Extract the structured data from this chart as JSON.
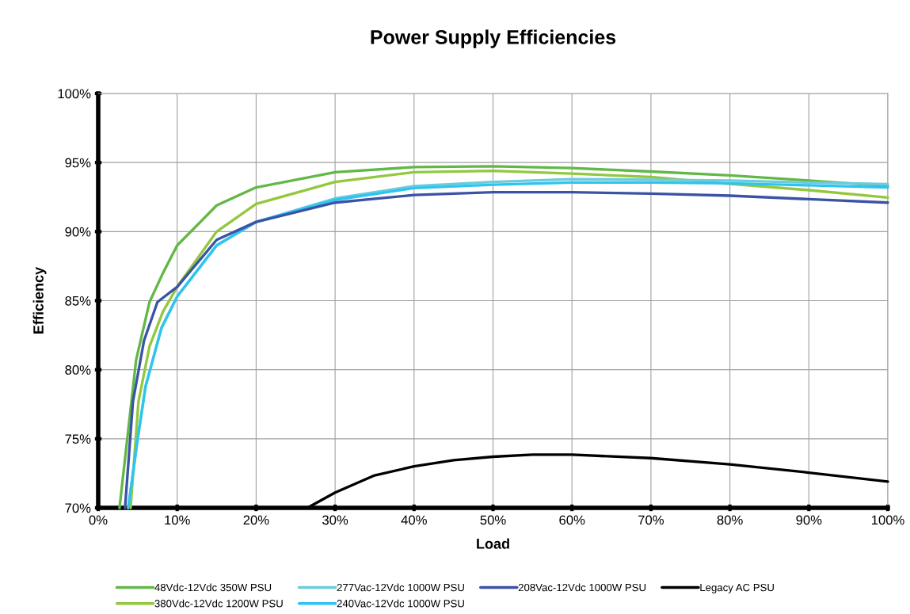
{
  "chart_data": {
    "type": "line",
    "title": "Power Supply Efficiencies",
    "xlabel": "Load",
    "ylabel": "Efficiency",
    "xlim": [
      0,
      100
    ],
    "ylim": [
      70,
      100
    ],
    "xticks": [
      {
        "value": 0,
        "label": "0%"
      },
      {
        "value": 10,
        "label": "10%"
      },
      {
        "value": 20,
        "label": "20%"
      },
      {
        "value": 30,
        "label": "30%"
      },
      {
        "value": 40,
        "label": "40%"
      },
      {
        "value": 50,
        "label": "50%"
      },
      {
        "value": 60,
        "label": "60%"
      },
      {
        "value": 70,
        "label": "70%"
      },
      {
        "value": 80,
        "label": "80%"
      },
      {
        "value": 90,
        "label": "90%"
      },
      {
        "value": 100,
        "label": "100%"
      }
    ],
    "yticks": [
      {
        "value": 70,
        "label": "70%"
      },
      {
        "value": 75,
        "label": "75%"
      },
      {
        "value": 80,
        "label": "80%"
      },
      {
        "value": 85,
        "label": "85%"
      },
      {
        "value": 90,
        "label": "90%"
      },
      {
        "value": 95,
        "label": "95%"
      },
      {
        "value": 100,
        "label": "100%"
      }
    ],
    "grid": true,
    "legend": "bottom",
    "marker": "none",
    "line_style": "solid",
    "series": [
      {
        "name": "48Vdc-12Vdc 350W PSU",
        "color": "#62b847",
        "x": [
          2.7,
          3.05,
          4.8,
          6.5,
          8.2,
          10,
          15,
          20,
          30,
          40,
          50,
          60,
          70,
          80,
          90,
          100
        ],
        "values": [
          70,
          71.8,
          80.7,
          84.9,
          87.0,
          89.0,
          91.9,
          93.2,
          94.3,
          94.67,
          94.73,
          94.6,
          94.35,
          94.07,
          93.7,
          93.3
        ]
      },
      {
        "name": "380Vdc-12Vdc 1200W PSU",
        "color": "#93c83e",
        "x": [
          4.1,
          5.1,
          6.5,
          8.2,
          10,
          15,
          20,
          30,
          40,
          50,
          60,
          70,
          80,
          90,
          100
        ],
        "values": [
          70,
          77.7,
          81.7,
          84.2,
          86.0,
          90.0,
          92.0,
          93.6,
          94.3,
          94.4,
          94.2,
          93.95,
          93.45,
          93.0,
          92.46
        ]
      },
      {
        "name": "277Vac-12Vdc 1000W PSU",
        "color": "#6ccbdc",
        "x": [
          3.8,
          5,
          6,
          8,
          10,
          15,
          20,
          30,
          40,
          50,
          60,
          70,
          80,
          90,
          100
        ],
        "values": [
          70,
          75,
          78.8,
          83,
          85.3,
          89.0,
          90.7,
          92.4,
          93.3,
          93.6,
          93.8,
          93.75,
          93.7,
          93.55,
          93.43
        ]
      },
      {
        "name": "240Vac-12Vdc 1000W PSU",
        "color": "#2ec4f0",
        "x": [
          3.8,
          5,
          6,
          8,
          10,
          15,
          20,
          30,
          40,
          50,
          60,
          70,
          80,
          90,
          100
        ],
        "values": [
          70,
          75,
          78.8,
          83,
          85.3,
          89.0,
          90.7,
          92.3,
          93.15,
          93.4,
          93.55,
          93.55,
          93.5,
          93.35,
          93.2
        ]
      },
      {
        "name": "208Vac-12Vdc 1000W PSU",
        "color": "#3a53a4",
        "x": [
          3.4,
          4.4,
          5.8,
          7.5,
          10,
          15,
          20,
          30,
          40,
          50,
          60,
          70,
          80,
          90,
          100
        ],
        "values": [
          70,
          77.7,
          82.1,
          84.9,
          86.0,
          89.4,
          90.7,
          92.1,
          92.65,
          92.85,
          92.85,
          92.75,
          92.6,
          92.35,
          92.1
        ]
      },
      {
        "name": "Legacy AC PSU",
        "color": "#000000",
        "x": [
          26.5,
          30,
          35,
          40,
          45,
          50,
          55,
          60,
          70,
          80,
          90,
          100
        ],
        "values": [
          70,
          71.1,
          72.35,
          73.0,
          73.45,
          73.7,
          73.85,
          73.85,
          73.6,
          73.15,
          72.55,
          71.9
        ]
      }
    ]
  }
}
